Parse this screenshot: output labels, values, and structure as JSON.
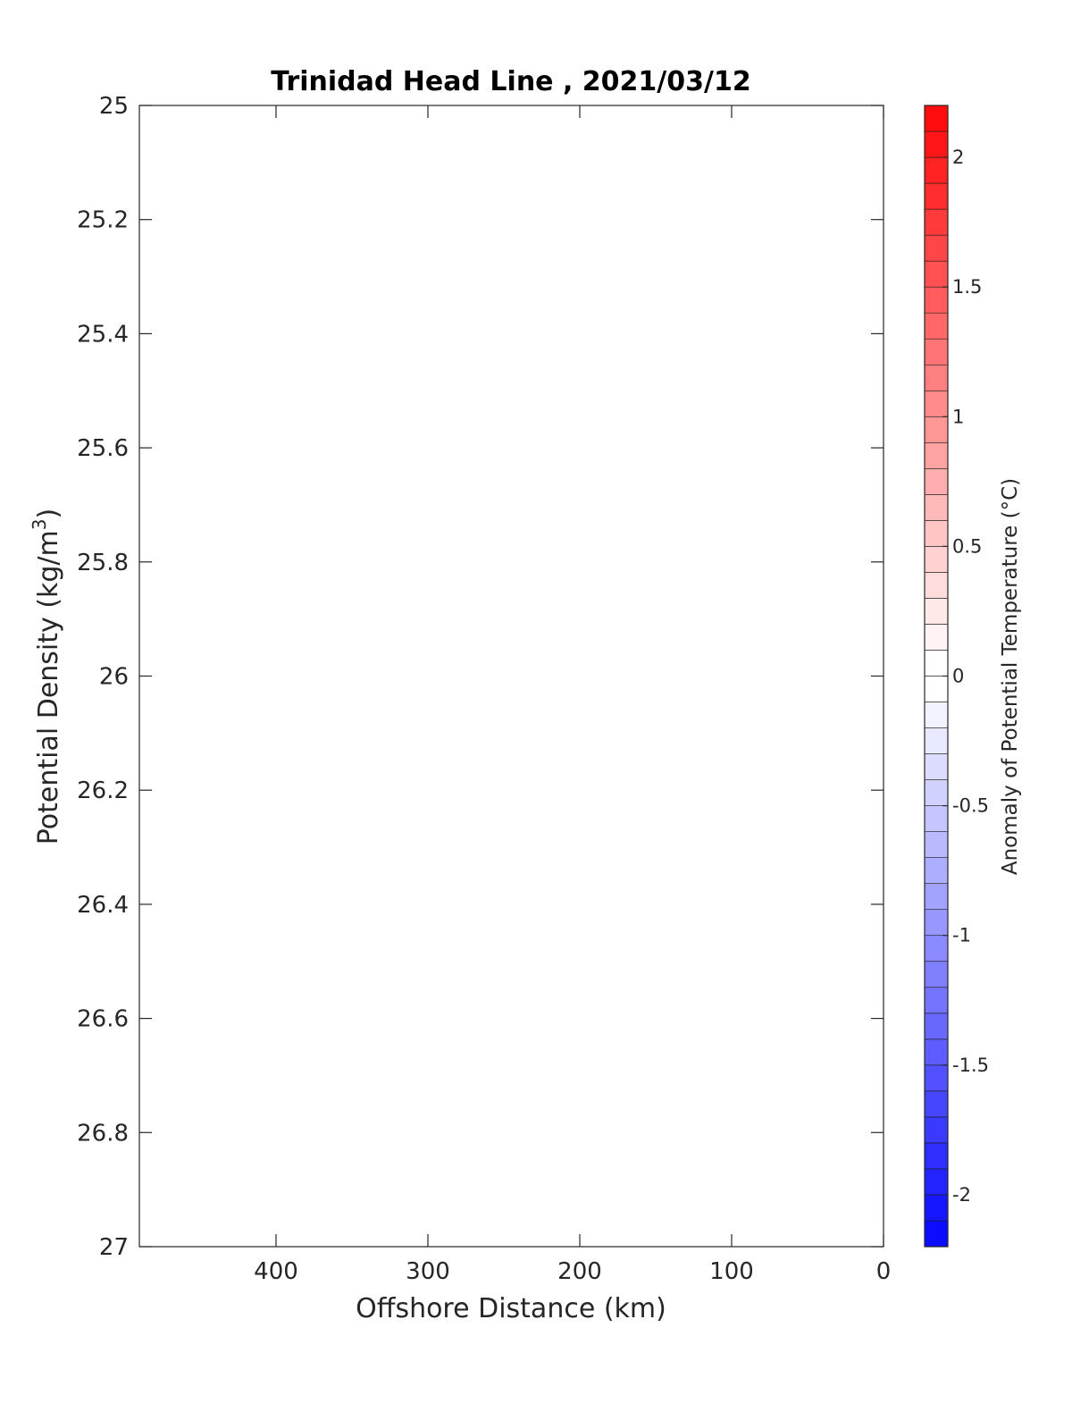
{
  "chart_data": {
    "type": "heatmap",
    "title": "Trinidad Head Line , 2021/03/12",
    "xlabel": "Offshore Distance (km)",
    "ylabel": "Potential Density (kg/m",
    "ylabel_superscript": "3",
    "ylabel_suffix": ")",
    "x_reversed": true,
    "xlim": [
      490,
      0
    ],
    "x_ticks": [
      400,
      300,
      200,
      100,
      0
    ],
    "x_tick_labels": [
      "400",
      "300",
      "200",
      "100",
      "0"
    ],
    "ylim": [
      25,
      27
    ],
    "y_reversed": true,
    "y_ticks": [
      25,
      25.2,
      25.4,
      25.6,
      25.8,
      26,
      26.2,
      26.4,
      26.6,
      26.8,
      27
    ],
    "y_tick_labels": [
      "25",
      "25.2",
      "25.4",
      "25.6",
      "25.8",
      "26",
      "26.2",
      "26.4",
      "26.6",
      "26.8",
      "27"
    ],
    "values": [],
    "grid": false,
    "colorbar": {
      "label": "Anomaly of Potential Temperature (°C)",
      "range": [
        -2.2,
        2.2
      ],
      "levels": 44,
      "step": 0.1,
      "min_color": "#0000ff",
      "mid_color": "#ffffff",
      "max_color": "#ff0000",
      "ticks": [
        2,
        1.5,
        1,
        0.5,
        0,
        -0.5,
        -1,
        -1.5,
        -2
      ],
      "tick_labels": [
        "2",
        "1.5",
        "1",
        "0.5",
        "0",
        "-0.5",
        "-1",
        "-1.5",
        "-2"
      ]
    }
  }
}
